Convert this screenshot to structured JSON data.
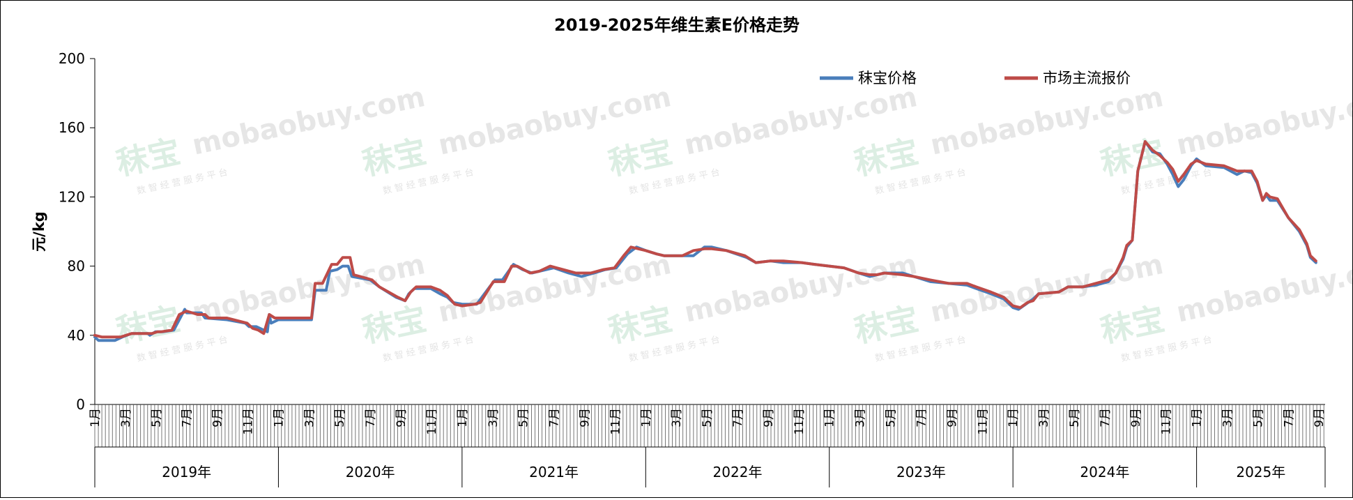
{
  "chart_data": {
    "type": "line",
    "title": "2019-2025年维生素E价格走势",
    "ylabel": "元/kg",
    "xlabel": "",
    "ylim": [
      0,
      200
    ],
    "yticks": [
      "0",
      "40",
      "80",
      "120",
      "160",
      "200"
    ],
    "month_labels": [
      "1月",
      "3月",
      "5月",
      "7月",
      "9月",
      "11月"
    ],
    "years": [
      "2019年",
      "2020年",
      "2021年",
      "2022年",
      "2023年",
      "2024年",
      "2025年"
    ],
    "x_unit": "year_fraction",
    "grid": false,
    "legend_position": "top-right",
    "series": [
      {
        "name": "秣宝价格",
        "color": "#4a7ebb",
        "points": [
          [
            2019.0,
            39
          ],
          [
            2019.02,
            37
          ],
          [
            2019.11,
            37
          ],
          [
            2019.15,
            39
          ],
          [
            2019.2,
            41
          ],
          [
            2019.29,
            41
          ],
          [
            2019.3,
            40
          ],
          [
            2019.33,
            42
          ],
          [
            2019.37,
            42
          ],
          [
            2019.43,
            43
          ],
          [
            2019.49,
            55
          ],
          [
            2019.5,
            53
          ],
          [
            2019.58,
            53
          ],
          [
            2019.6,
            50
          ],
          [
            2019.72,
            49
          ],
          [
            2019.82,
            47
          ],
          [
            2019.84,
            45
          ],
          [
            2019.88,
            45
          ],
          [
            2019.94,
            42
          ],
          [
            2019.95,
            52
          ],
          [
            2019.96,
            47
          ],
          [
            2020.0,
            49
          ],
          [
            2020.1,
            49
          ],
          [
            2020.18,
            49
          ],
          [
            2020.2,
            66
          ],
          [
            2020.26,
            66
          ],
          [
            2020.28,
            77
          ],
          [
            2020.32,
            78
          ],
          [
            2020.35,
            80
          ],
          [
            2020.38,
            80
          ],
          [
            2020.4,
            74
          ],
          [
            2020.5,
            72
          ],
          [
            2020.55,
            68
          ],
          [
            2020.64,
            62
          ],
          [
            2020.69,
            60
          ],
          [
            2020.71,
            64
          ],
          [
            2020.74,
            67
          ],
          [
            2020.83,
            67
          ],
          [
            2020.88,
            64
          ],
          [
            2020.92,
            62
          ],
          [
            2020.95,
            59
          ],
          [
            2021.0,
            58
          ],
          [
            2021.08,
            58
          ],
          [
            2021.15,
            68
          ],
          [
            2021.18,
            72
          ],
          [
            2021.22,
            72
          ],
          [
            2021.28,
            81
          ],
          [
            2021.33,
            78
          ],
          [
            2021.38,
            76
          ],
          [
            2021.42,
            77
          ],
          [
            2021.5,
            79
          ],
          [
            2021.58,
            76
          ],
          [
            2021.65,
            74
          ],
          [
            2021.72,
            76
          ],
          [
            2021.78,
            78
          ],
          [
            2021.84,
            79
          ],
          [
            2021.9,
            87
          ],
          [
            2021.95,
            91
          ],
          [
            2022.0,
            89
          ],
          [
            2022.06,
            87
          ],
          [
            2022.1,
            86
          ],
          [
            2022.15,
            86
          ],
          [
            2022.2,
            86
          ],
          [
            2022.26,
            86
          ],
          [
            2022.32,
            91
          ],
          [
            2022.36,
            91
          ],
          [
            2022.44,
            89
          ],
          [
            2022.55,
            85
          ],
          [
            2022.6,
            82
          ],
          [
            2022.68,
            83
          ],
          [
            2022.75,
            82
          ],
          [
            2022.85,
            82
          ],
          [
            2022.92,
            81
          ],
          [
            2023.0,
            80
          ],
          [
            2023.08,
            79
          ],
          [
            2023.16,
            76
          ],
          [
            2023.22,
            74
          ],
          [
            2023.26,
            75
          ],
          [
            2023.3,
            76
          ],
          [
            2023.4,
            76
          ],
          [
            2023.46,
            74
          ],
          [
            2023.55,
            71
          ],
          [
            2023.65,
            70
          ],
          [
            2023.75,
            69
          ],
          [
            2023.8,
            67
          ],
          [
            2023.88,
            64
          ],
          [
            2023.95,
            61
          ],
          [
            2024.0,
            56
          ],
          [
            2024.03,
            55
          ],
          [
            2024.07,
            58
          ],
          [
            2024.11,
            61
          ],
          [
            2024.14,
            64
          ],
          [
            2024.25,
            65
          ],
          [
            2024.3,
            68
          ],
          [
            2024.38,
            68
          ],
          [
            2024.45,
            69
          ],
          [
            2024.52,
            71
          ],
          [
            2024.56,
            76
          ],
          [
            2024.6,
            84
          ],
          [
            2024.62,
            91
          ],
          [
            2024.65,
            95
          ],
          [
            2024.68,
            135
          ],
          [
            2024.72,
            152
          ],
          [
            2024.76,
            146
          ],
          [
            2024.8,
            145
          ],
          [
            2024.84,
            139
          ],
          [
            2024.87,
            133
          ],
          [
            2024.9,
            126
          ],
          [
            2024.93,
            130
          ],
          [
            2024.97,
            138
          ],
          [
            2025.0,
            142
          ],
          [
            2025.05,
            138
          ],
          [
            2025.15,
            137
          ],
          [
            2025.22,
            133
          ],
          [
            2025.26,
            135
          ],
          [
            2025.3,
            134
          ],
          [
            2025.33,
            128
          ],
          [
            2025.36,
            118
          ],
          [
            2025.38,
            121
          ],
          [
            2025.4,
            118
          ],
          [
            2025.44,
            118
          ],
          [
            2025.5,
            108
          ],
          [
            2025.56,
            100
          ],
          [
            2025.6,
            92
          ],
          [
            2025.62,
            85
          ],
          [
            2025.65,
            82
          ]
        ]
      },
      {
        "name": "市场主流报价",
        "color": "#be4b48",
        "points": [
          [
            2019.0,
            40
          ],
          [
            2019.04,
            39
          ],
          [
            2019.14,
            39
          ],
          [
            2019.2,
            41
          ],
          [
            2019.26,
            41
          ],
          [
            2019.31,
            41
          ],
          [
            2019.34,
            42
          ],
          [
            2019.36,
            42
          ],
          [
            2019.42,
            43
          ],
          [
            2019.46,
            52
          ],
          [
            2019.5,
            54
          ],
          [
            2019.56,
            52
          ],
          [
            2019.6,
            52
          ],
          [
            2019.62,
            50
          ],
          [
            2019.72,
            50
          ],
          [
            2019.83,
            47
          ],
          [
            2019.86,
            44
          ],
          [
            2019.89,
            43
          ],
          [
            2019.92,
            41
          ],
          [
            2019.95,
            52
          ],
          [
            2019.98,
            50
          ],
          [
            2020.0,
            50
          ],
          [
            2020.1,
            50
          ],
          [
            2020.18,
            50
          ],
          [
            2020.2,
            70
          ],
          [
            2020.24,
            70
          ],
          [
            2020.29,
            81
          ],
          [
            2020.32,
            81
          ],
          [
            2020.35,
            85
          ],
          [
            2020.39,
            85
          ],
          [
            2020.41,
            75
          ],
          [
            2020.48,
            73
          ],
          [
            2020.51,
            72
          ],
          [
            2020.55,
            68
          ],
          [
            2020.65,
            62
          ],
          [
            2020.69,
            60
          ],
          [
            2020.72,
            65
          ],
          [
            2020.75,
            68
          ],
          [
            2020.83,
            68
          ],
          [
            2020.88,
            66
          ],
          [
            2020.92,
            63
          ],
          [
            2020.96,
            58
          ],
          [
            2021.0,
            57
          ],
          [
            2021.07,
            58
          ],
          [
            2021.1,
            59
          ],
          [
            2021.17,
            71
          ],
          [
            2021.23,
            71
          ],
          [
            2021.27,
            80
          ],
          [
            2021.3,
            80
          ],
          [
            2021.37,
            76
          ],
          [
            2021.42,
            77
          ],
          [
            2021.48,
            80
          ],
          [
            2021.55,
            78
          ],
          [
            2021.62,
            76
          ],
          [
            2021.7,
            76
          ],
          [
            2021.77,
            78
          ],
          [
            2021.83,
            79
          ],
          [
            2021.88,
            86
          ],
          [
            2021.92,
            91
          ],
          [
            2021.96,
            90
          ],
          [
            2022.0,
            89
          ],
          [
            2022.06,
            87
          ],
          [
            2022.1,
            86
          ],
          [
            2022.2,
            86
          ],
          [
            2022.26,
            89
          ],
          [
            2022.32,
            90
          ],
          [
            2022.36,
            90
          ],
          [
            2022.44,
            89
          ],
          [
            2022.54,
            86
          ],
          [
            2022.6,
            82
          ],
          [
            2022.68,
            83
          ],
          [
            2022.75,
            83
          ],
          [
            2022.85,
            82
          ],
          [
            2022.92,
            81
          ],
          [
            2023.0,
            80
          ],
          [
            2023.08,
            79
          ],
          [
            2023.16,
            76
          ],
          [
            2023.22,
            75
          ],
          [
            2023.26,
            75
          ],
          [
            2023.3,
            76
          ],
          [
            2023.4,
            75
          ],
          [
            2023.46,
            74
          ],
          [
            2023.55,
            72
          ],
          [
            2023.65,
            70
          ],
          [
            2023.75,
            70
          ],
          [
            2023.8,
            68
          ],
          [
            2023.88,
            65
          ],
          [
            2023.95,
            62
          ],
          [
            2024.0,
            57
          ],
          [
            2024.04,
            56
          ],
          [
            2024.08,
            59
          ],
          [
            2024.11,
            60
          ],
          [
            2024.14,
            64
          ],
          [
            2024.25,
            65
          ],
          [
            2024.3,
            68
          ],
          [
            2024.38,
            68
          ],
          [
            2024.45,
            70
          ],
          [
            2024.52,
            72
          ],
          [
            2024.56,
            76
          ],
          [
            2024.6,
            85
          ],
          [
            2024.62,
            92
          ],
          [
            2024.65,
            95
          ],
          [
            2024.68,
            135
          ],
          [
            2024.72,
            152
          ],
          [
            2024.76,
            147
          ],
          [
            2024.8,
            144
          ],
          [
            2024.84,
            140
          ],
          [
            2024.87,
            136
          ],
          [
            2024.9,
            129
          ],
          [
            2024.93,
            133
          ],
          [
            2024.97,
            139
          ],
          [
            2025.0,
            141
          ],
          [
            2025.05,
            139
          ],
          [
            2025.15,
            138
          ],
          [
            2025.22,
            135
          ],
          [
            2025.26,
            135
          ],
          [
            2025.3,
            135
          ],
          [
            2025.33,
            129
          ],
          [
            2025.36,
            118
          ],
          [
            2025.38,
            122
          ],
          [
            2025.4,
            120
          ],
          [
            2025.44,
            119
          ],
          [
            2025.5,
            108
          ],
          [
            2025.56,
            101
          ],
          [
            2025.6,
            93
          ],
          [
            2025.62,
            86
          ],
          [
            2025.65,
            83
          ]
        ]
      }
    ]
  },
  "watermark": {
    "brand": "秣宝",
    "domain": "mobaobuy.com",
    "slogan": "数 智 经 营 服 务 平 台"
  }
}
